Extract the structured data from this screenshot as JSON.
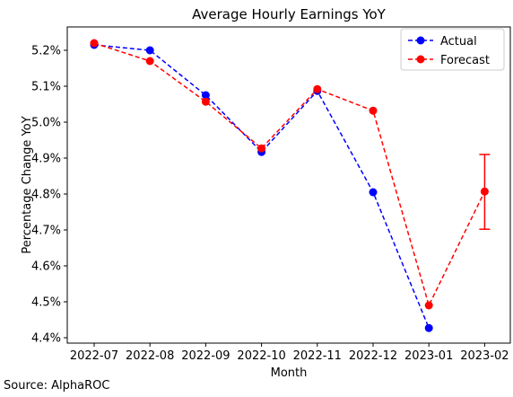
{
  "chart_data": {
    "type": "line",
    "title": "Average Hourly Earnings YoY",
    "xlabel": "Month",
    "ylabel": "Percentage Change YoY",
    "categories": [
      "2022-07",
      "2022-08",
      "2022-09",
      "2022-10",
      "2022-11",
      "2022-12",
      "2023-01",
      "2023-02"
    ],
    "ylim": [
      4.385,
      5.265
    ],
    "yticks": [
      4.4,
      4.5,
      4.6,
      4.7,
      4.8,
      4.9,
      5.0,
      5.1,
      5.2
    ],
    "ytick_labels": [
      "4.4%",
      "4.5%",
      "4.6%",
      "4.7%",
      "4.8%",
      "4.9%",
      "5.0%",
      "5.1%",
      "5.2%"
    ],
    "series": [
      {
        "name": "Actual",
        "color": "#0000ff",
        "values": [
          5.215,
          5.2,
          5.075,
          4.917,
          5.087,
          4.805,
          4.427,
          null
        ]
      },
      {
        "name": "Forecast",
        "color": "#ff0000",
        "values": [
          5.22,
          5.17,
          5.057,
          4.927,
          5.092,
          5.032,
          4.49,
          4.807
        ]
      }
    ],
    "error_bar": {
      "series": "Forecast",
      "category": "2023-02",
      "low": 4.702,
      "high": 4.91,
      "color": "#ff0000"
    },
    "legend_position": "top-right",
    "grid": false,
    "source": "Source: AlphaROC"
  }
}
